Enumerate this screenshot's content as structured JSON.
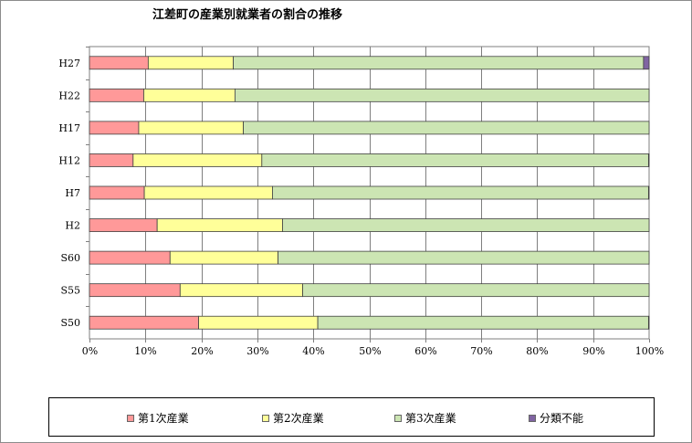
{
  "chart_data": {
    "type": "bar",
    "orientation": "horizontal",
    "stacked": true,
    "title": "江差町の産業別就業者の割合の推移",
    "categories": [
      "H27",
      "H22",
      "H17",
      "H12",
      "H7",
      "H2",
      "S60",
      "S55",
      "S50"
    ],
    "x_ticks": [
      "0%",
      "10%",
      "20%",
      "30%",
      "40%",
      "50%",
      "60%",
      "70%",
      "80%",
      "90%",
      "100%"
    ],
    "xlim": [
      0,
      100
    ],
    "grid": "vertical",
    "legend_position": "bottom",
    "series": [
      {
        "name": "第1次産業",
        "color": "#ff9999",
        "values": [
          10.5,
          9.7,
          8.8,
          7.8,
          9.8,
          12.1,
          14.4,
          16.2,
          19.5
        ]
      },
      {
        "name": "第2次産業",
        "color": "#ffff99",
        "values": [
          15.2,
          16.3,
          18.7,
          23.0,
          22.9,
          22.4,
          19.3,
          21.9,
          21.3
        ]
      },
      {
        "name": "第3次産業",
        "color": "#cce5b3",
        "values": [
          73.3,
          74.0,
          72.5,
          69.1,
          67.2,
          65.5,
          66.3,
          61.9,
          59.1
        ]
      },
      {
        "name": "分類不能",
        "color": "#8064a2",
        "values": [
          1.0,
          0.0,
          0.0,
          0.1,
          0.1,
          0.0,
          0.0,
          0.0,
          0.1
        ]
      }
    ]
  }
}
